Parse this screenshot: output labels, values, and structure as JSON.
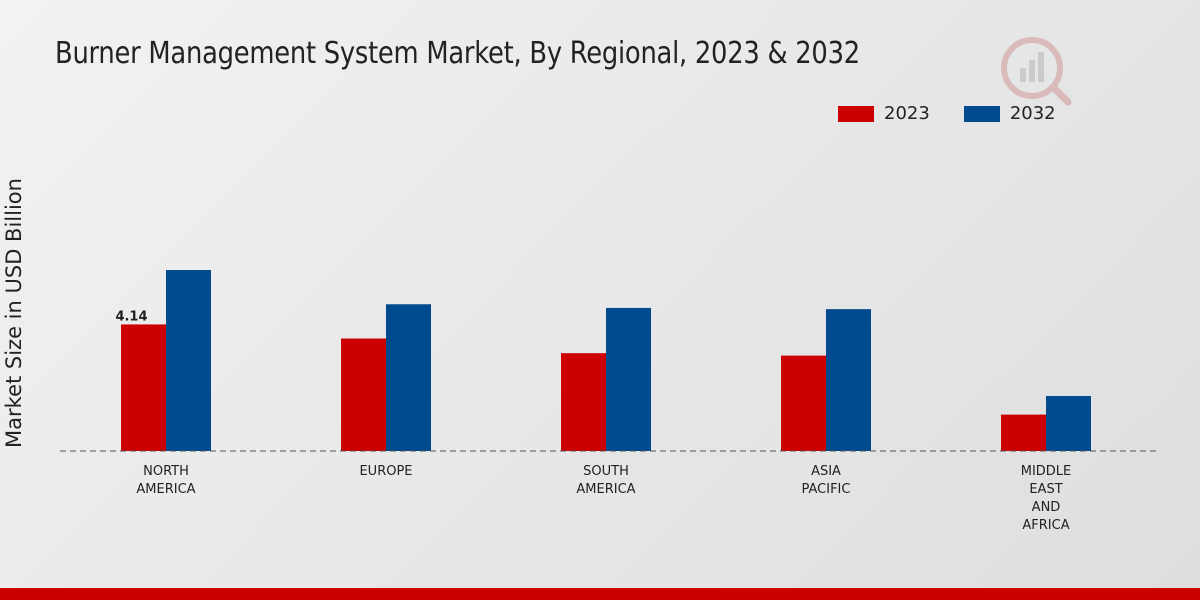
{
  "chart_data": {
    "type": "bar",
    "title": "Burner Management System Market, By Regional, 2023 & 2032",
    "ylabel": "Market Size in USD Billion",
    "xlabel": "",
    "categories": [
      [
        "NORTH",
        "AMERICA"
      ],
      [
        "EUROPE"
      ],
      [
        "SOUTH",
        "AMERICA"
      ],
      [
        "ASIA",
        "PACIFIC"
      ],
      [
        "MIDDLE",
        "EAST",
        "AND",
        "AFRICA"
      ]
    ],
    "series": [
      {
        "name": "2023",
        "color": "#cc0000",
        "values": [
          4.14,
          3.68,
          3.2,
          3.12,
          1.19
        ]
      },
      {
        "name": "2032",
        "color": "#004a8f",
        "values": [
          5.92,
          4.8,
          4.68,
          4.64,
          1.8
        ]
      }
    ],
    "ylim": [
      0,
      10.5
    ],
    "data_labels": [
      {
        "series": 0,
        "index": 0,
        "text": "4.14"
      }
    ],
    "grid": false,
    "legend": "top-right"
  }
}
